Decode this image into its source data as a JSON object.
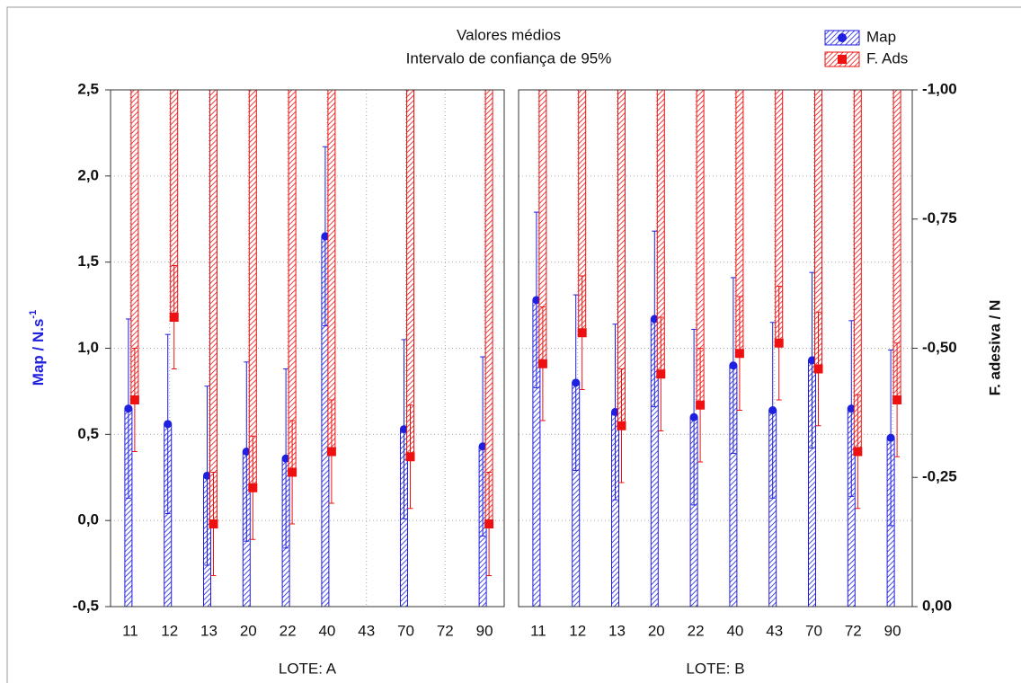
{
  "chart_data": {
    "type": "bar",
    "title": "Valores médios",
    "subtitle": "Intervalo de confiança de 95%",
    "ylabel": "Map / N.s",
    "ylabel_sup": "-1",
    "y2label": "F. adesiva / N",
    "ylim": [
      -0.5,
      2.5
    ],
    "yticks": [
      {
        "value": -0.5,
        "label": "-0,5"
      },
      {
        "value": 0,
        "label": "0,0"
      },
      {
        "value": 0.5,
        "label": "0,5"
      },
      {
        "value": 1,
        "label": "1,0"
      },
      {
        "value": 1.5,
        "label": "1,5"
      },
      {
        "value": 2,
        "label": "2,0"
      },
      {
        "value": 2.5,
        "label": "2,5"
      }
    ],
    "y2lim": [
      0,
      -1
    ],
    "y2ticks": [
      {
        "value": 0,
        "label": "0,00"
      },
      {
        "value": -0.25,
        "label": "-0,25"
      },
      {
        "value": -0.5,
        "label": "-0,50"
      },
      {
        "value": -0.75,
        "label": "-0,75"
      },
      {
        "value": -1,
        "label": "-1,00"
      }
    ],
    "grid": true,
    "legend": "top-right",
    "categories": [
      "11",
      "12",
      "13",
      "20",
      "22",
      "40",
      "43",
      "70",
      "72",
      "90"
    ],
    "panels": [
      {
        "label": "LOTE: A",
        "series": [
          {
            "name": "Map",
            "color": "#1f1fe0",
            "values": [
              0.65,
              0.56,
              0.26,
              0.4,
              0.36,
              1.65,
              null,
              0.53,
              null,
              0.43
            ],
            "errors": [
              0.52,
              0.52,
              0.52,
              0.52,
              0.52,
              0.52,
              null,
              0.52,
              null,
              0.52
            ]
          },
          {
            "name": "F. Ads",
            "color": "#ee1111",
            "axis": "y2",
            "values": [
              -0.4,
              -0.56,
              -0.16,
              -0.23,
              -0.26,
              -0.3,
              null,
              -0.29,
              null,
              -0.16
            ],
            "errors": [
              0.1,
              0.1,
              0.1,
              0.1,
              0.1,
              0.1,
              null,
              0.1,
              null,
              0.1
            ]
          }
        ]
      },
      {
        "label": "LOTE: B",
        "series": [
          {
            "name": "Map",
            "color": "#1f1fe0",
            "values": [
              1.28,
              0.8,
              0.63,
              1.17,
              0.6,
              0.9,
              0.64,
              0.93,
              0.65,
              0.48
            ],
            "errors": [
              0.51,
              0.51,
              0.51,
              0.51,
              0.51,
              0.51,
              0.51,
              0.51,
              0.51,
              0.51
            ]
          },
          {
            "name": "F. Ads",
            "color": "#ee1111",
            "axis": "y2",
            "values": [
              -0.47,
              -0.53,
              -0.35,
              -0.45,
              -0.39,
              -0.49,
              -0.51,
              -0.46,
              -0.3,
              -0.4
            ],
            "errors": [
              0.11,
              0.11,
              0.11,
              0.11,
              0.11,
              0.11,
              0.11,
              0.11,
              0.11,
              0.11
            ]
          }
        ]
      }
    ]
  }
}
